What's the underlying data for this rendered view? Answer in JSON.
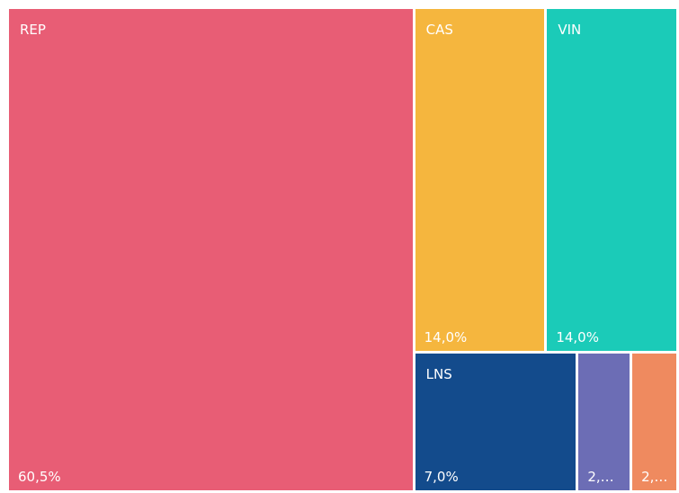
{
  "chart_data": {
    "type": "treemap",
    "categories": [
      "REP",
      "CAS",
      "VIN",
      "LNS",
      null,
      null
    ],
    "values": [
      60.5,
      14.0,
      14.0,
      7.0,
      2.3,
      2.0
    ],
    "value_labels": [
      "60,5%",
      "14,0%",
      "14,0%",
      "7,0%",
      "2,…",
      "2,…"
    ],
    "colors": [
      "#e85d75",
      "#f5b63e",
      "#1bcbb8",
      "#134b8c",
      "#6c6db5",
      "#ef8a5f"
    ]
  }
}
